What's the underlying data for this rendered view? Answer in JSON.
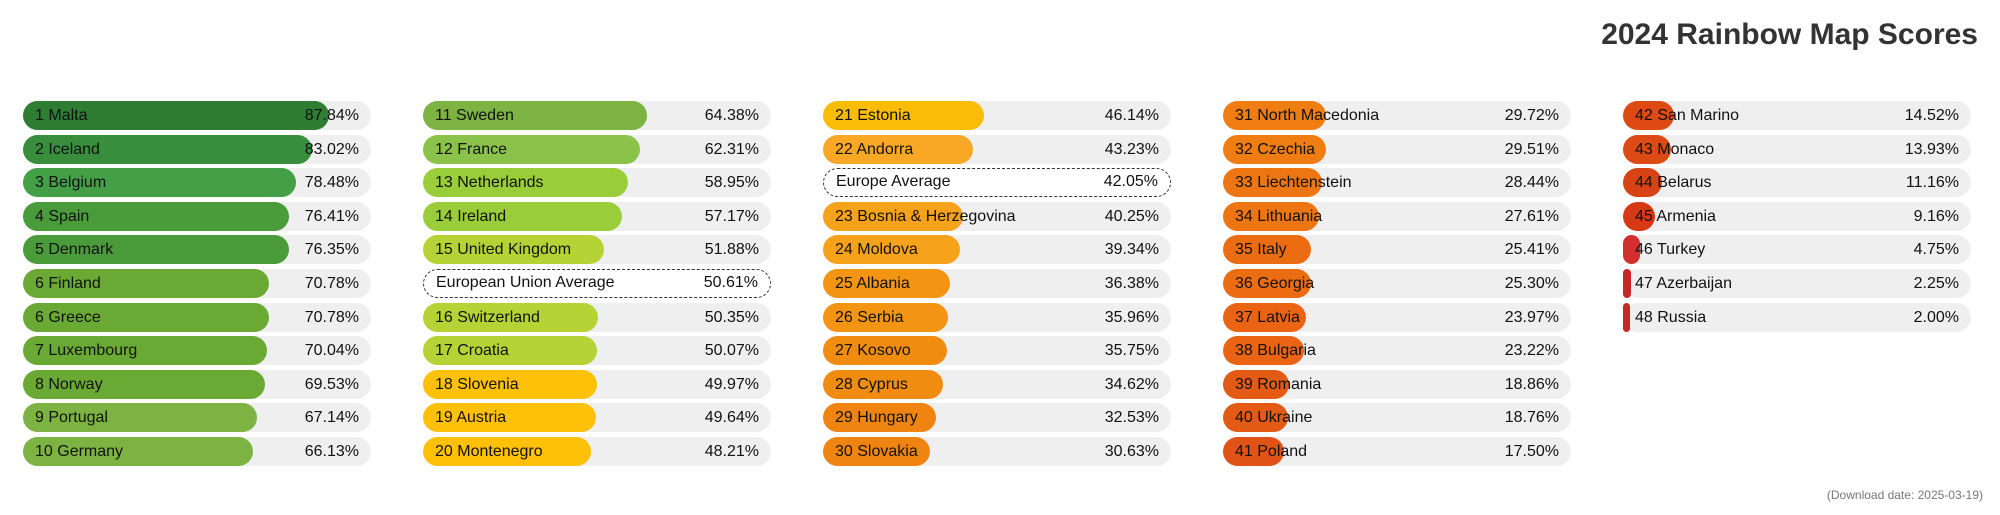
{
  "title": "2024 Rainbow Map Scores",
  "footnote": "(Download date: 2025-03-19)",
  "chart_data": {
    "type": "bar",
    "orientation": "horizontal",
    "title": "2024 Rainbow Map Scores",
    "unit": "%",
    "xlim": [
      0,
      100
    ],
    "columns": [
      [
        {
          "label": "1 Malta",
          "value": 87.84,
          "value_label": "87.84%",
          "color": "#2e7d32"
        },
        {
          "label": "2 Iceland",
          "value": 83.02,
          "value_label": "83.02%",
          "color": "#388e3c"
        },
        {
          "label": "3 Belgium",
          "value": 78.48,
          "value_label": "78.48%",
          "color": "#43a047"
        },
        {
          "label": "4 Spain",
          "value": 76.41,
          "value_label": "76.41%",
          "color": "#4a9c3a"
        },
        {
          "label": "5 Denmark",
          "value": 76.35,
          "value_label": "76.35%",
          "color": "#4a9c3a"
        },
        {
          "label": "6 Finland",
          "value": 70.78,
          "value_label": "70.78%",
          "color": "#6aaa34"
        },
        {
          "label": "6 Greece",
          "value": 70.78,
          "value_label": "70.78%",
          "color": "#6aaa34"
        },
        {
          "label": "7 Luxembourg",
          "value": 70.04,
          "value_label": "70.04%",
          "color": "#6aaa34"
        },
        {
          "label": "8 Norway",
          "value": 69.53,
          "value_label": "69.53%",
          "color": "#6aaa34"
        },
        {
          "label": "9 Portugal",
          "value": 67.14,
          "value_label": "67.14%",
          "color": "#7cb342"
        },
        {
          "label": "10 Germany",
          "value": 66.13,
          "value_label": "66.13%",
          "color": "#7cb342"
        }
      ],
      [
        {
          "label": "11 Sweden",
          "value": 64.38,
          "value_label": "64.38%",
          "color": "#7cb342"
        },
        {
          "label": "12 France",
          "value": 62.31,
          "value_label": "62.31%",
          "color": "#8bc34a"
        },
        {
          "label": "13 Netherlands",
          "value": 58.95,
          "value_label": "58.95%",
          "color": "#9acd3a"
        },
        {
          "label": "14 Ireland",
          "value": 57.17,
          "value_label": "57.17%",
          "color": "#9acd3a"
        },
        {
          "label": "15 United Kingdom",
          "value": 51.88,
          "value_label": "51.88%",
          "color": "#b5d334"
        },
        {
          "label": "European Union Average",
          "value": 50.61,
          "value_label": "50.61%",
          "average": true
        },
        {
          "label": "16 Switzerland",
          "value": 50.35,
          "value_label": "50.35%",
          "color": "#b5d334"
        },
        {
          "label": "17 Croatia",
          "value": 50.07,
          "value_label": "50.07%",
          "color": "#b5d334"
        },
        {
          "label": "18 Slovenia",
          "value": 49.97,
          "value_label": "49.97%",
          "color": "#ffc107"
        },
        {
          "label": "19 Austria",
          "value": 49.64,
          "value_label": "49.64%",
          "color": "#ffc107"
        },
        {
          "label": "20 Montenegro",
          "value": 48.21,
          "value_label": "48.21%",
          "color": "#ffc107"
        }
      ],
      [
        {
          "label": "21 Estonia",
          "value": 46.14,
          "value_label": "46.14%",
          "color": "#fbbc05"
        },
        {
          "label": "22 Andorra",
          "value": 43.23,
          "value_label": "43.23%",
          "color": "#f9a825"
        },
        {
          "label": "Europe Average",
          "value": 42.05,
          "value_label": "42.05%",
          "average": true
        },
        {
          "label": "23 Bosnia & Herzegovina",
          "value": 40.25,
          "value_label": "40.25%",
          "color": "#f7a21b"
        },
        {
          "label": "24 Moldova",
          "value": 39.34,
          "value_label": "39.34%",
          "color": "#f7a21b"
        },
        {
          "label": "25 Albania",
          "value": 36.38,
          "value_label": "36.38%",
          "color": "#f39412"
        },
        {
          "label": "26 Serbia",
          "value": 35.96,
          "value_label": "35.96%",
          "color": "#f39412"
        },
        {
          "label": "27 Kosovo",
          "value": 35.75,
          "value_label": "35.75%",
          "color": "#f08c0f"
        },
        {
          "label": "28 Cyprus",
          "value": 34.62,
          "value_label": "34.62%",
          "color": "#f08c0f"
        },
        {
          "label": "29 Hungary",
          "value": 32.53,
          "value_label": "32.53%",
          "color": "#ef8510"
        },
        {
          "label": "30 Slovakia",
          "value": 30.63,
          "value_label": "30.63%",
          "color": "#ef8510"
        }
      ],
      [
        {
          "label": "31 North Macedonia",
          "value": 29.72,
          "value_label": "29.72%",
          "color": "#ef7d12"
        },
        {
          "label": "32 Czechia",
          "value": 29.51,
          "value_label": "29.51%",
          "color": "#ef7d12"
        },
        {
          "label": "33 Liechtenstein",
          "value": 28.44,
          "value_label": "28.44%",
          "color": "#ee7612"
        },
        {
          "label": "34 Lithuania",
          "value": 27.61,
          "value_label": "27.61%",
          "color": "#ee7612"
        },
        {
          "label": "35 Italy",
          "value": 25.41,
          "value_label": "25.41%",
          "color": "#ec6c12"
        },
        {
          "label": "36 Georgia",
          "value": 25.3,
          "value_label": "25.30%",
          "color": "#ec6c12"
        },
        {
          "label": "37 Latvia",
          "value": 23.97,
          "value_label": "23.97%",
          "color": "#ea6414"
        },
        {
          "label": "38 Bulgaria",
          "value": 23.22,
          "value_label": "23.22%",
          "color": "#ea6414"
        },
        {
          "label": "39 Romania",
          "value": 18.86,
          "value_label": "18.86%",
          "color": "#e35a15"
        },
        {
          "label": "40 Ukraine",
          "value": 18.76,
          "value_label": "18.76%",
          "color": "#e35a15"
        },
        {
          "label": "41 Poland",
          "value": 17.5,
          "value_label": "17.50%",
          "color": "#e05216"
        }
      ],
      [
        {
          "label": "42 San Marino",
          "value": 14.52,
          "value_label": "14.52%",
          "color": "#dd4a14"
        },
        {
          "label": "43 Monaco",
          "value": 13.93,
          "value_label": "13.93%",
          "color": "#dd4a14"
        },
        {
          "label": "44 Belarus",
          "value": 11.16,
          "value_label": "11.16%",
          "color": "#d84315"
        },
        {
          "label": "45 Armenia",
          "value": 9.16,
          "value_label": "9.16%",
          "color": "#d63a15"
        },
        {
          "label": "46 Turkey",
          "value": 4.75,
          "value_label": "4.75%",
          "color": "#d32f2f"
        },
        {
          "label": "47 Azerbaijan",
          "value": 2.25,
          "value_label": "2.25%",
          "color": "#c62828"
        },
        {
          "label": "48 Russia",
          "value": 2.0,
          "value_label": "2.00%",
          "color": "#c62828"
        }
      ]
    ]
  }
}
